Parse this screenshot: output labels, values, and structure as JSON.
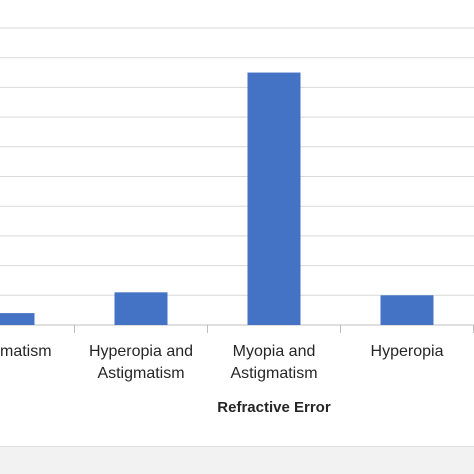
{
  "chart_data": {
    "type": "bar",
    "x_label": "Refractive Error",
    "categories": [
      "Astigmatism",
      "Hyperopia and Astigmatism",
      "Myopia and Astigmatism",
      "Hyperopia"
    ],
    "values": [
      0.4,
      1.1,
      8.5,
      1.0
    ],
    "color": "#4472c4",
    "ylim": [
      0,
      10
    ],
    "yticks": [
      0,
      1,
      2,
      3,
      4,
      5,
      6,
      7,
      8,
      9,
      10
    ],
    "grid": true
  }
}
